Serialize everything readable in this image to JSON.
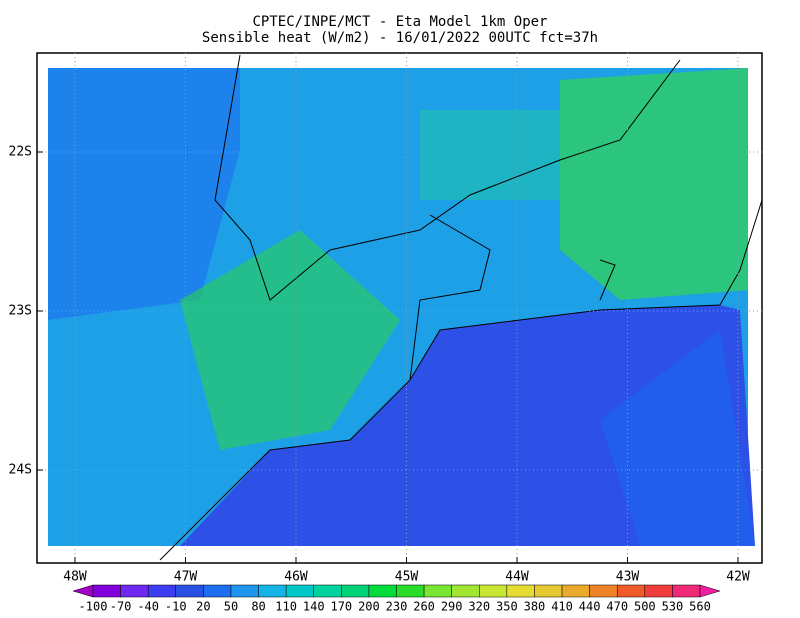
{
  "map": {
    "title": "CPTEC/INPE/MCT -  Eta Model 1km Oper",
    "subtitle": "Sensible heat (W/m2) - 16/01/2022 00UTC fct=37h",
    "lat_ticks": [
      {
        "value": -22,
        "label": "22S"
      },
      {
        "value": -23,
        "label": "23S"
      },
      {
        "value": -24,
        "label": "24S"
      }
    ],
    "lon_ticks": [
      {
        "value": -48,
        "label": "48W"
      },
      {
        "value": -47,
        "label": "47W"
      },
      {
        "value": -46,
        "label": "46W"
      },
      {
        "value": -45,
        "label": "45W"
      },
      {
        "value": -44,
        "label": "44W"
      },
      {
        "value": -43,
        "label": "43W"
      },
      {
        "value": -42,
        "label": "42W"
      }
    ],
    "colorbar": {
      "levels": [
        -100,
        -70,
        -40,
        -10,
        20,
        50,
        80,
        110,
        140,
        170,
        200,
        230,
        260,
        290,
        320,
        350,
        380,
        410,
        440,
        470,
        500,
        530,
        560
      ],
      "colors": [
        "#a000c8",
        "#8200dc",
        "#6e28f0",
        "#3c3cf0",
        "#2850e6",
        "#1e6ef0",
        "#1e96f0",
        "#14b4e6",
        "#00c8c8",
        "#00d2a0",
        "#00d278",
        "#00dc3c",
        "#28dc28",
        "#78e632",
        "#a0e632",
        "#c8e632",
        "#e6dc32",
        "#e6c832",
        "#eaaa2c",
        "#f08228",
        "#f05a28",
        "#f03c3c",
        "#f02878",
        "#f01ea0"
      ]
    }
  }
}
